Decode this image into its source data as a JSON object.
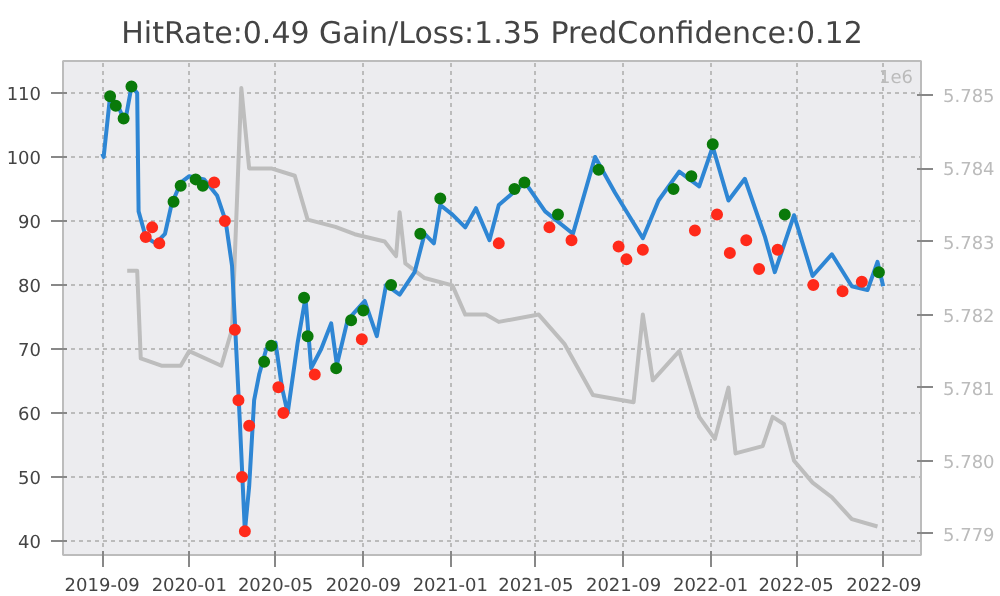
{
  "chart_data": {
    "type": "line",
    "title": "HitRate:0.49 Gain/Loss:1.35 PredConfidence:0.12",
    "annotations": [
      "1e6"
    ],
    "xlim": [
      "2019-07-08",
      "2022-10-23"
    ],
    "ylim": [
      37.8,
      115
    ],
    "y2lim": [
      5.77871,
      5.78547
    ],
    "xticks": [
      {
        "value": "2019-09-01",
        "label": "2019-09"
      },
      {
        "value": "2020-01-01",
        "label": "2020-01"
      },
      {
        "value": "2020-05-01",
        "label": "2020-05"
      },
      {
        "value": "2020-09-01",
        "label": "2020-09"
      },
      {
        "value": "2021-01-01",
        "label": "2021-01"
      },
      {
        "value": "2021-05-01",
        "label": "2021-05"
      },
      {
        "value": "2021-09-01",
        "label": "2021-09"
      },
      {
        "value": "2022-01-01",
        "label": "2022-01"
      },
      {
        "value": "2022-05-01",
        "label": "2022-05"
      },
      {
        "value": "2022-09-01",
        "label": "2022-09"
      }
    ],
    "yticks": [
      40,
      50,
      60,
      70,
      80,
      90,
      100,
      110
    ],
    "y2ticks": [
      {
        "value": 5.779,
        "label": "5.779"
      },
      {
        "value": 5.78,
        "label": "5.780"
      },
      {
        "value": 5.781,
        "label": "5.781"
      },
      {
        "value": 5.782,
        "label": "5.782"
      },
      {
        "value": 5.783,
        "label": "5.783"
      },
      {
        "value": 5.784,
        "label": "5.784"
      },
      {
        "value": 5.785,
        "label": "5.785"
      }
    ],
    "grid": true,
    "series": [
      {
        "axis": "y2",
        "color": "#bdbdbd",
        "marker": "none",
        "x": [
          "2019-10-06",
          "2019-10-20",
          "2019-10-25",
          "2019-11-23",
          "2019-12-20",
          "2020-01-01",
          "2020-02-15",
          "2020-03-01",
          "2020-03-14",
          "2020-03-25",
          "2020-04-25",
          "2020-05-28",
          "2020-06-15",
          "2020-07-24",
          "2020-08-20",
          "2020-10-01",
          "2020-10-17",
          "2020-10-22",
          "2020-10-30",
          "2020-11-26",
          "2021-01-04",
          "2021-01-22",
          "2021-02-20",
          "2021-03-10",
          "2021-05-05",
          "2021-06-10",
          "2021-07-20",
          "2021-09-15",
          "2021-09-28",
          "2021-10-12",
          "2021-11-18",
          "2021-12-16",
          "2022-01-07",
          "2022-01-26",
          "2022-02-05",
          "2022-03-15",
          "2022-03-29",
          "2022-04-14",
          "2022-04-28",
          "2022-05-24",
          "2022-06-20",
          "2022-07-18",
          "2022-08-23"
        ],
        "values": [
          5.7826,
          5.7826,
          5.7814,
          5.7813,
          5.7813,
          5.7815,
          5.7813,
          5.7818,
          5.7851,
          5.784,
          5.784,
          5.7839,
          5.7833,
          5.7832,
          5.7831,
          5.783,
          5.7828,
          5.7834,
          5.7827,
          5.7825,
          5.7824,
          5.782,
          5.782,
          5.7819,
          5.782,
          5.7816,
          5.7809,
          5.7808,
          5.782,
          5.7811,
          5.7815,
          5.7806,
          5.7803,
          5.781,
          5.7801,
          5.7802,
          5.7806,
          5.7805,
          5.78,
          5.7797,
          5.7795,
          5.7792,
          5.7791
        ]
      },
      {
        "color": "#2e86d4",
        "marker": "none",
        "x": [
          "2019-09-01",
          "2019-09-03",
          "2019-09-12",
          "2019-09-23",
          "2019-10-03",
          "2019-10-12",
          "2019-10-20",
          "2019-10-22",
          "2019-11-01",
          "2019-11-15",
          "2019-11-28",
          "2019-12-07",
          "2019-12-20",
          "2020-01-01",
          "2020-01-22",
          "2020-02-09",
          "2020-02-21",
          "2020-03-01",
          "2020-03-06",
          "2020-03-12",
          "2020-03-19",
          "2020-03-25",
          "2020-04-01",
          "2020-04-08",
          "2020-04-18",
          "2020-05-01",
          "2020-05-10",
          "2020-05-18",
          "2020-06-01",
          "2020-06-12",
          "2020-06-20",
          "2020-07-04",
          "2020-07-18",
          "2020-07-26",
          "2020-08-10",
          "2020-09-03",
          "2020-09-20",
          "2020-10-03",
          "2020-10-22",
          "2020-11-12",
          "2020-11-26",
          "2020-12-09",
          "2020-12-18",
          "2021-01-04",
          "2021-01-22",
          "2021-02-06",
          "2021-02-25",
          "2021-03-10",
          "2021-04-16",
          "2021-05-14",
          "2021-06-22",
          "2021-07-23",
          "2021-08-20",
          "2021-09-28",
          "2021-10-20",
          "2021-11-18",
          "2021-12-16",
          "2022-01-04",
          "2022-01-26",
          "2022-02-18",
          "2022-03-18",
          "2022-04-01",
          "2022-04-28",
          "2022-05-24",
          "2022-06-20",
          "2022-07-18",
          "2022-08-09",
          "2022-08-23",
          "2022-08-31"
        ],
        "values": [
          100.5,
          100,
          109.5,
          108,
          105.5,
          111,
          110,
          91.5,
          87.5,
          86.5,
          88,
          92.5,
          96,
          97,
          96.5,
          94,
          90,
          83,
          72,
          58.5,
          41.5,
          48.5,
          62,
          66,
          70,
          71,
          64,
          60,
          71,
          78,
          67,
          70,
          74,
          67.5,
          74.5,
          77.5,
          72,
          80,
          78.5,
          82,
          88,
          86.5,
          92.5,
          91,
          89,
          92,
          87,
          92.5,
          96,
          91.5,
          88,
          100,
          94.4,
          87.3,
          93.2,
          97.7,
          95.4,
          101.6,
          93.2,
          96.6,
          87.6,
          82,
          90.9,
          81.4,
          84.8,
          79.8,
          79.2,
          83.6,
          79.8
        ]
      },
      {
        "type": "scatter",
        "color": "#0a7a0a",
        "marker": "circle",
        "x": [
          "2019-09-12",
          "2019-09-20",
          "2019-10-01",
          "2019-10-12",
          "2019-12-10",
          "2019-12-20",
          "2020-01-10",
          "2020-01-20",
          "2020-04-15",
          "2020-04-25",
          "2020-06-10",
          "2020-06-15",
          "2020-07-25",
          "2020-08-15",
          "2020-09-01",
          "2020-10-10",
          "2020-11-20",
          "2020-12-18",
          "2021-04-01",
          "2021-04-15",
          "2021-06-01",
          "2021-07-28",
          "2021-11-10",
          "2021-12-05",
          "2022-01-04",
          "2022-04-15",
          "2022-08-25"
        ],
        "values": [
          109.5,
          108,
          106,
          111,
          93,
          95.5,
          96.5,
          95.5,
          68,
          70.5,
          78,
          72,
          67,
          74.5,
          76,
          80,
          88,
          93.5,
          95,
          96,
          91,
          98,
          95,
          97,
          102,
          91,
          82
        ]
      },
      {
        "type": "scatter",
        "color": "#ff2a1a",
        "marker": "circle",
        "x": [
          "2019-11-01",
          "2019-11-10",
          "2019-11-20",
          "2020-02-05",
          "2020-02-20",
          "2020-03-05",
          "2020-03-10",
          "2020-03-15",
          "2020-03-19",
          "2020-03-25",
          "2020-05-05",
          "2020-05-12",
          "2020-06-25",
          "2020-08-30",
          "2021-03-10",
          "2021-05-20",
          "2021-06-20",
          "2021-08-25",
          "2021-09-05",
          "2021-09-28",
          "2021-12-10",
          "2022-01-10",
          "2022-01-28",
          "2022-02-20",
          "2022-03-10",
          "2022-04-05",
          "2022-05-25",
          "2022-07-05",
          "2022-08-01"
        ],
        "values": [
          87.5,
          89,
          86.5,
          96,
          90,
          73,
          62,
          50,
          41.5,
          58,
          64,
          60,
          66,
          71.5,
          86.5,
          89,
          87,
          86,
          84,
          85.5,
          88.5,
          91,
          85,
          87,
          82.5,
          85.5,
          80,
          79,
          80.5
        ]
      }
    ]
  }
}
